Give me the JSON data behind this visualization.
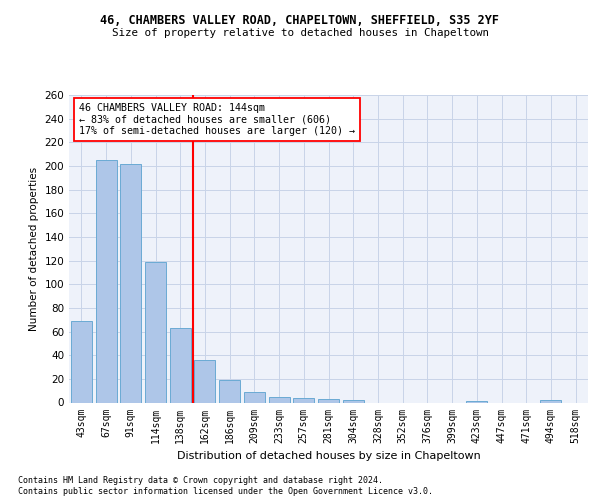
{
  "title1": "46, CHAMBERS VALLEY ROAD, CHAPELTOWN, SHEFFIELD, S35 2YF",
  "title2": "Size of property relative to detached houses in Chapeltown",
  "xlabel": "Distribution of detached houses by size in Chapeltown",
  "ylabel": "Number of detached properties",
  "bar_labels": [
    "43sqm",
    "67sqm",
    "91sqm",
    "114sqm",
    "138sqm",
    "162sqm",
    "186sqm",
    "209sqm",
    "233sqm",
    "257sqm",
    "281sqm",
    "304sqm",
    "328sqm",
    "352sqm",
    "376sqm",
    "399sqm",
    "423sqm",
    "447sqm",
    "471sqm",
    "494sqm",
    "518sqm"
  ],
  "bar_values": [
    69,
    205,
    202,
    119,
    63,
    36,
    19,
    9,
    5,
    4,
    3,
    2,
    0,
    0,
    0,
    0,
    1,
    0,
    0,
    2,
    0
  ],
  "bar_color": "#aec6e8",
  "bar_edge_color": "#6aaad4",
  "vline_x": 4.5,
  "vline_color": "red",
  "annotation_text": "46 CHAMBERS VALLEY ROAD: 144sqm\n← 83% of detached houses are smaller (606)\n17% of semi-detached houses are larger (120) →",
  "annotation_box_color": "white",
  "annotation_box_edge": "red",
  "ylim": [
    0,
    260
  ],
  "yticks": [
    0,
    20,
    40,
    60,
    80,
    100,
    120,
    140,
    160,
    180,
    200,
    220,
    240,
    260
  ],
  "footnote1": "Contains HM Land Registry data © Crown copyright and database right 2024.",
  "footnote2": "Contains public sector information licensed under the Open Government Licence v3.0.",
  "bg_color": "#eef2fa",
  "grid_color": "#c8d4e8"
}
